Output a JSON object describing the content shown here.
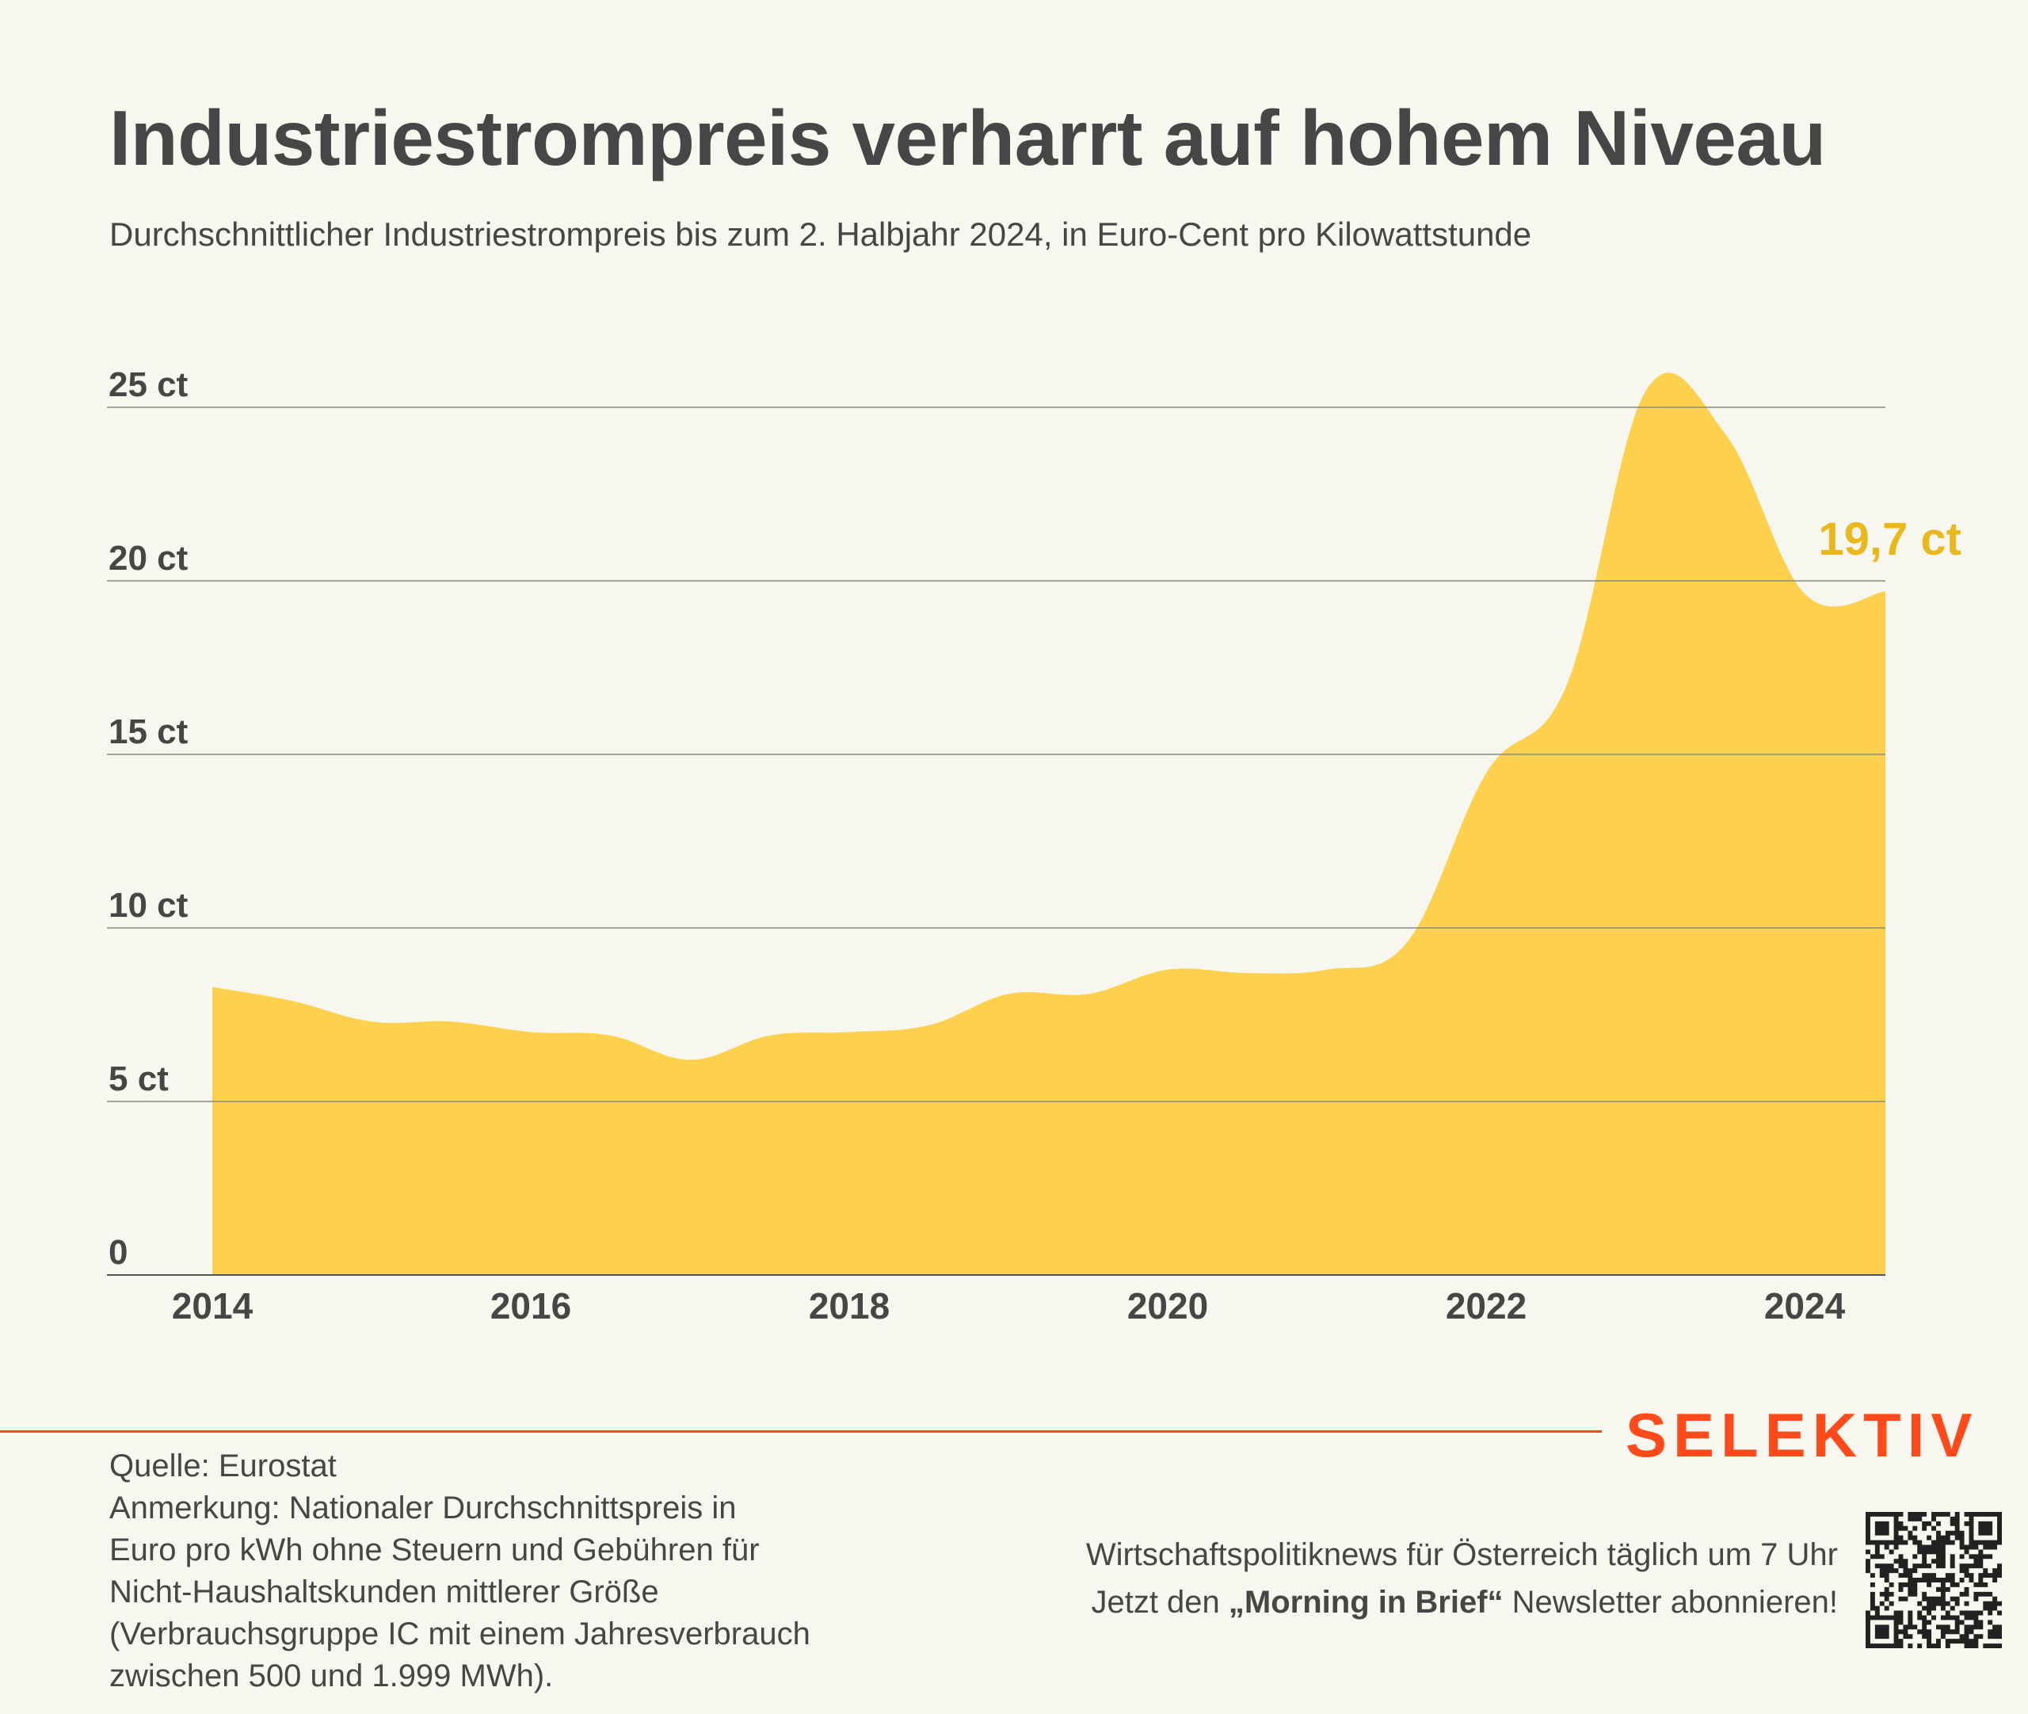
{
  "title": "Industriestrompreis verharrt auf hohem Niveau",
  "subtitle": "Durchschnittlicher Industriestrompreis bis zum 2. Halbjahr 2024, in Euro-Cent pro Kilowattstunde",
  "chart_data": {
    "type": "area",
    "title": "Industriestrompreis verharrt auf hohem Niveau",
    "subtitle": "Durchschnittlicher Industriestrompreis bis zum 2. Halbjahr 2024, in Euro-Cent pro Kilowattstunde",
    "x": [
      "2014-H1",
      "2014-H2",
      "2015-H1",
      "2015-H2",
      "2016-H1",
      "2016-H2",
      "2017-H1",
      "2017-H2",
      "2018-H1",
      "2018-H2",
      "2019-H1",
      "2019-H2",
      "2020-H1",
      "2020-H2",
      "2021-H1",
      "2021-H2",
      "2022-H1",
      "2022-H2",
      "2023-H1",
      "2023-H2",
      "2024-H1",
      "2024-H2"
    ],
    "series": [
      {
        "values": [
          8.3,
          7.9,
          7.3,
          7.3,
          7.0,
          6.9,
          6.2,
          6.9,
          7.0,
          7.2,
          8.1,
          8.1,
          8.8,
          8.7,
          8.8,
          9.6,
          14.5,
          17.0,
          25.5,
          24.2,
          19.6,
          19.7
        ]
      }
    ],
    "x_ticks": [
      "2014",
      "2016",
      "2018",
      "2020",
      "2022",
      "2024"
    ],
    "y_ticks": [
      "0",
      "5 ct",
      "10 ct",
      "15 ct",
      "20 ct",
      "25 ct"
    ],
    "ylim": [
      0,
      25
    ],
    "grid": true,
    "fill_color": "#fdd14d",
    "end_label": "19,7 ct",
    "end_label_color": "#e8b81c"
  },
  "footer": {
    "brand": "SELEKTIV",
    "brand_color": "#ff4a1c",
    "source_lines": [
      "Quelle: Eurostat",
      "Anmerkung: Nationaler Durchschnittspreis in",
      "Euro pro kWh ohne Steuern und Gebühren für",
      "Nicht-Haushaltskunden mittlerer Größe",
      "(Verbrauchsgruppe IC mit einem Jahresverbrauch",
      "zwischen 500 und 1.999 MWh)."
    ],
    "promo_line1": "Wirtschaftspolitiknews für Österreich täglich um 7 Uhr",
    "promo_line2_prefix": "Jetzt den ",
    "promo_line2_bold": "„Morning in Brief“",
    "promo_line2_suffix": " Newsletter abonnieren!",
    "qr_icon": "qr-code-icon"
  }
}
